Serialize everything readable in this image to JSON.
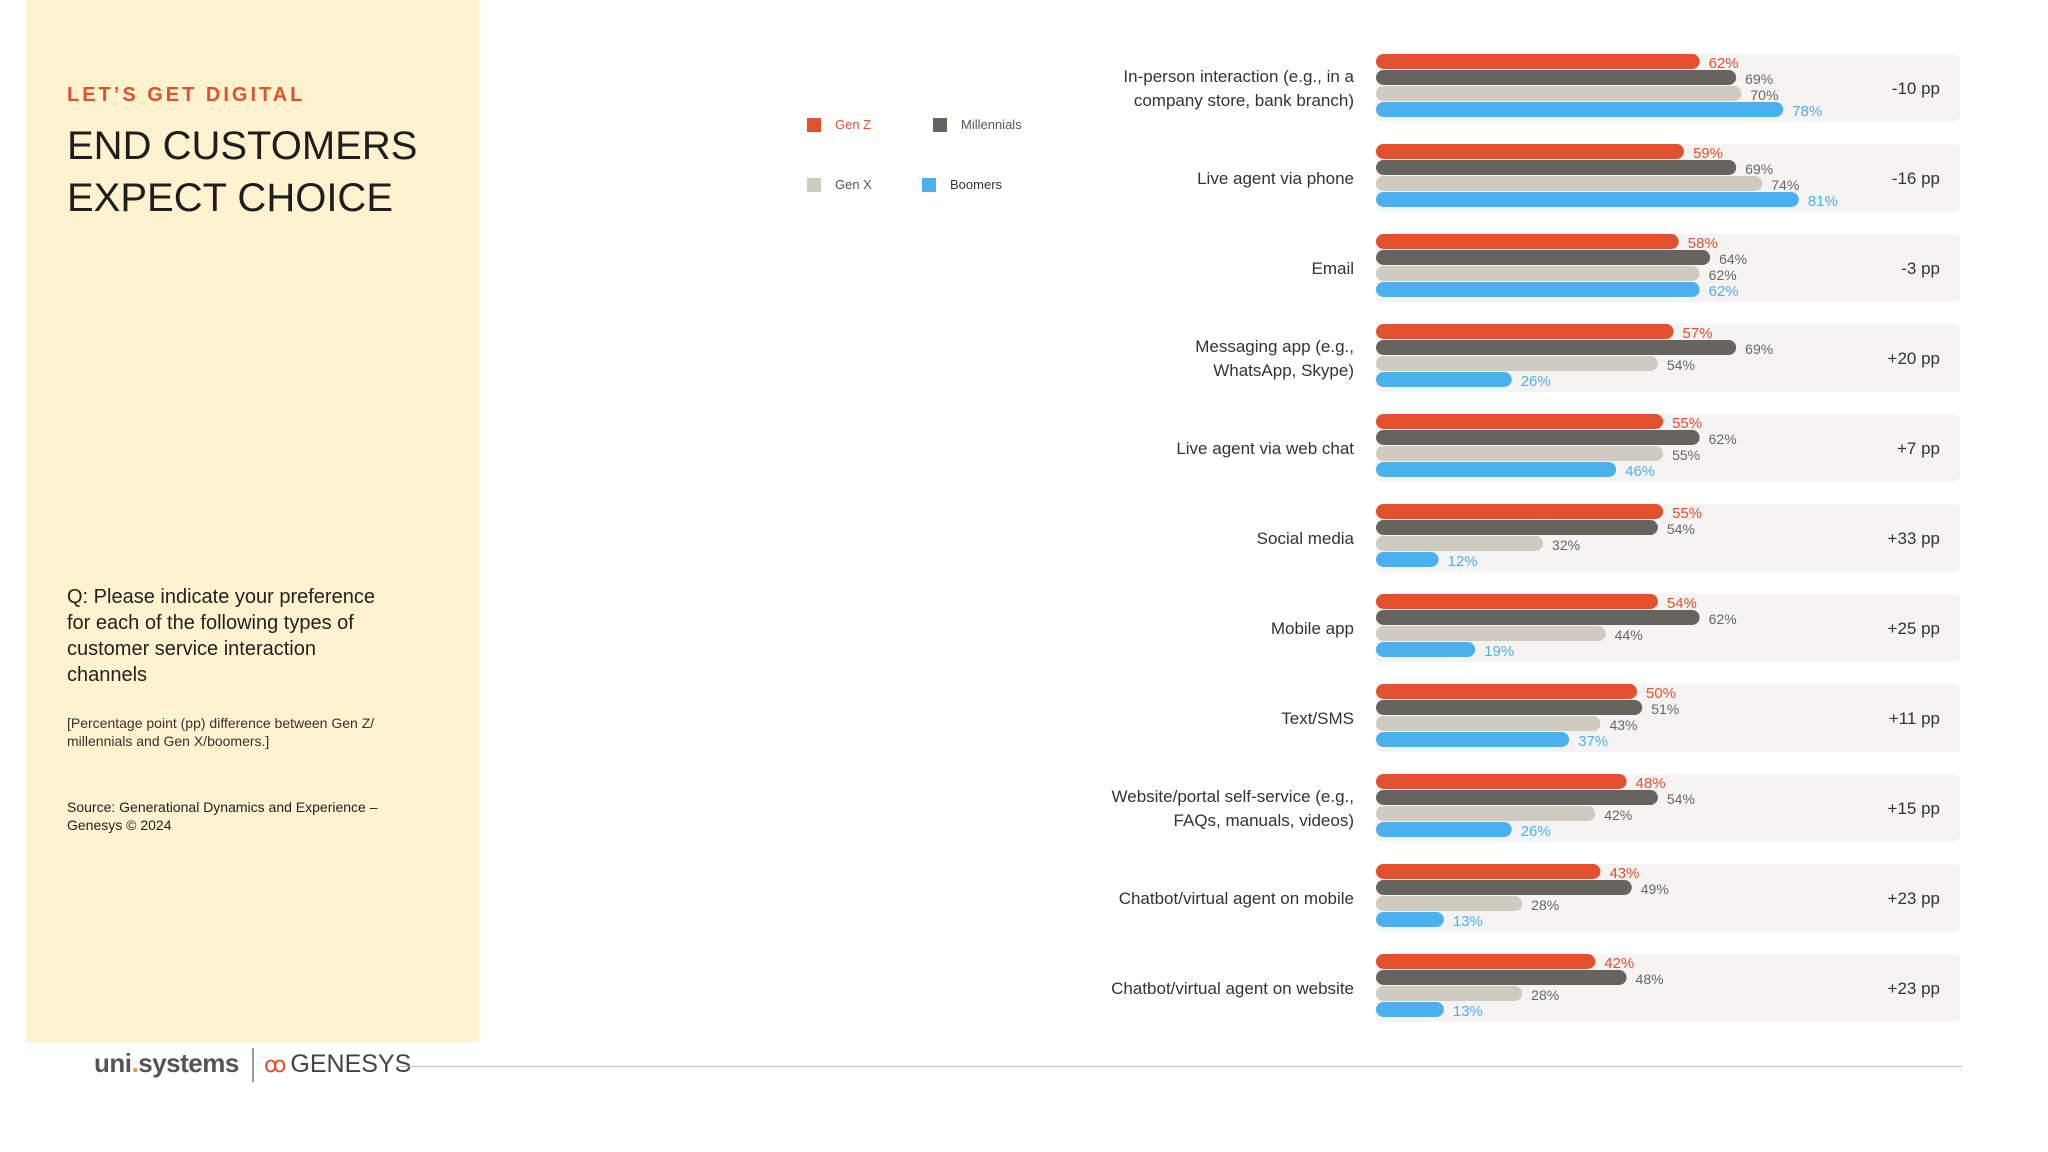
{
  "sidebar": {
    "eyebrow": "LET’S GET DIGITAL",
    "title": "END CUSTOMERS EXPECT CHOICE",
    "question": "Q: Please indicate your preference for each of the following types of customer service interaction channels",
    "note": "[Percentage point (pp) difference between Gen Z/ millennials and Gen X/boomers.]",
    "source": "Source: Generational Dynamics and Experience – Genesys © 2024"
  },
  "legend": [
    {
      "name": "Gen Z",
      "color": "#e2502d"
    },
    {
      "name": "Millennials",
      "color": "#66645f"
    },
    {
      "name": "Gen X",
      "color": "#cfcbc1"
    },
    {
      "name": "Boomers",
      "color": "#4bb0ee"
    }
  ],
  "footer": {
    "unisystems_a": "uni",
    "unisystems_dot": ".",
    "unisystems_b": "systems",
    "genesys_mark": "ꚙ",
    "genesys": "GENESYS"
  },
  "chart_data": {
    "type": "bar",
    "orientation": "horizontal",
    "units": "%",
    "xlim": [
      0,
      100
    ],
    "categories": [
      [
        "In-person interaction (e.g., in a",
        "company store, bank branch)"
      ],
      [
        "Live agent via phone"
      ],
      [
        "Email"
      ],
      [
        "Messaging app (e.g.,",
        "WhatsApp, Skype)"
      ],
      [
        "Live agent via web chat"
      ],
      [
        "Social media"
      ],
      [
        "Mobile app"
      ],
      [
        "Text/SMS"
      ],
      [
        "Website/portal self-service (e.g.,",
        "FAQs, manuals, videos)"
      ],
      [
        "Chatbot/virtual agent on mobile"
      ],
      [
        "Chatbot/virtual agent on website"
      ]
    ],
    "series": [
      {
        "name": "Gen Z",
        "color": "#e2502d",
        "values": [
          62,
          59,
          58,
          57,
          55,
          55,
          54,
          50,
          48,
          43,
          42
        ]
      },
      {
        "name": "Millennials",
        "color": "#66645f",
        "values": [
          69,
          69,
          64,
          69,
          62,
          54,
          62,
          51,
          54,
          49,
          48
        ]
      },
      {
        "name": "Gen X",
        "color": "#cfcbc1",
        "values": [
          70,
          74,
          62,
          54,
          55,
          32,
          44,
          43,
          42,
          28,
          28
        ]
      },
      {
        "name": "Boomers",
        "color": "#4bb0ee",
        "values": [
          78,
          81,
          62,
          26,
          46,
          12,
          19,
          37,
          26,
          13,
          13
        ]
      }
    ],
    "differences": [
      "-10 pp",
      "-16 pp",
      "-3 pp",
      "+20 pp",
      "+7 pp",
      "+33 pp",
      "+25 pp",
      "+11 pp",
      "+15 pp",
      "+23 pp",
      "+23 pp"
    ],
    "grid": false,
    "legend_position": "top-left"
  }
}
